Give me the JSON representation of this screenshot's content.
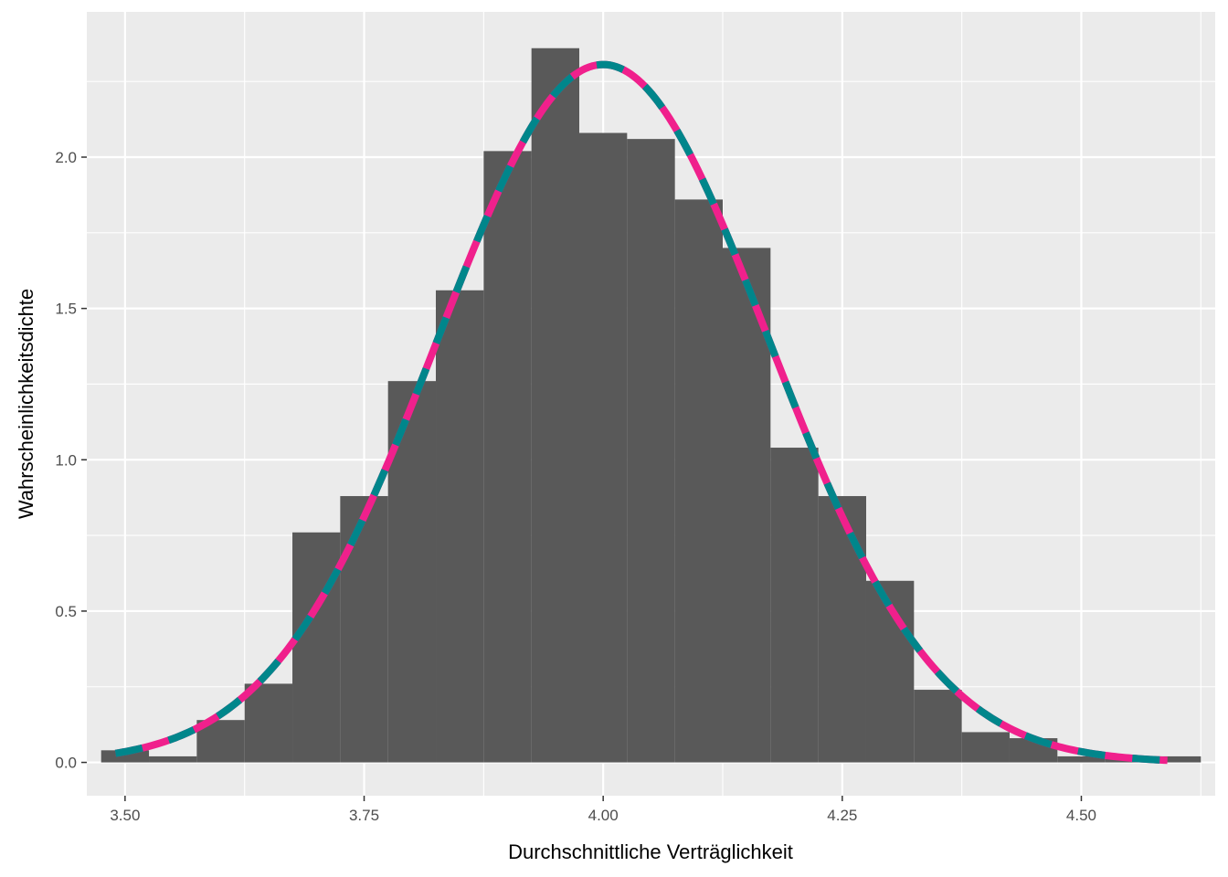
{
  "chart_data": {
    "type": "bar",
    "title": "",
    "xlabel": "Durchschnittliche Verträglichkeit",
    "ylabel": "Wahrscheinlichkeitsdichte",
    "xlim": [
      3.46,
      4.64
    ],
    "ylim": [
      -0.11,
      2.48
    ],
    "x_ticks": [
      3.5,
      3.75,
      4.0,
      4.25,
      4.5
    ],
    "x_tick_labels": [
      "3.50",
      "3.75",
      "4.00",
      "4.25",
      "4.50"
    ],
    "y_ticks": [
      0.0,
      0.5,
      1.0,
      1.5,
      2.0
    ],
    "y_tick_labels": [
      "0.0",
      "0.5",
      "1.0",
      "1.5",
      "2.0"
    ],
    "grid": true,
    "legend": "none",
    "colors": {
      "panel": "#ebebeb",
      "grid": "#ffffff",
      "bars": "#595959",
      "density_solid": "#f0208c",
      "density_dashed": "#00868b"
    },
    "histogram": {
      "bin_width": 0.05,
      "bins": [
        {
          "x0": 3.475,
          "x1": 3.525,
          "density": 0.04
        },
        {
          "x0": 3.525,
          "x1": 3.575,
          "density": 0.02
        },
        {
          "x0": 3.575,
          "x1": 3.625,
          "density": 0.14
        },
        {
          "x0": 3.625,
          "x1": 3.675,
          "density": 0.26
        },
        {
          "x0": 3.675,
          "x1": 3.725,
          "density": 0.76
        },
        {
          "x0": 3.725,
          "x1": 3.775,
          "density": 0.88
        },
        {
          "x0": 3.775,
          "x1": 3.825,
          "density": 1.26
        },
        {
          "x0": 3.825,
          "x1": 3.875,
          "density": 1.56
        },
        {
          "x0": 3.875,
          "x1": 3.925,
          "density": 2.02
        },
        {
          "x0": 3.925,
          "x1": 3.975,
          "density": 2.36
        },
        {
          "x0": 3.975,
          "x1": 4.025,
          "density": 2.08
        },
        {
          "x0": 4.025,
          "x1": 4.075,
          "density": 2.06
        },
        {
          "x0": 4.075,
          "x1": 4.125,
          "density": 1.86
        },
        {
          "x0": 4.125,
          "x1": 4.175,
          "density": 1.7
        },
        {
          "x0": 4.175,
          "x1": 4.225,
          "density": 1.04
        },
        {
          "x0": 4.225,
          "x1": 4.275,
          "density": 0.88
        },
        {
          "x0": 4.275,
          "x1": 4.325,
          "density": 0.6
        },
        {
          "x0": 4.325,
          "x1": 4.375,
          "density": 0.24
        },
        {
          "x0": 4.375,
          "x1": 4.425,
          "density": 0.1
        },
        {
          "x0": 4.425,
          "x1": 4.475,
          "density": 0.08
        },
        {
          "x0": 4.475,
          "x1": 4.525,
          "density": 0.02
        },
        {
          "x0": 4.525,
          "x1": 4.575,
          "density": 0.02
        },
        {
          "x0": 4.575,
          "x1": 4.625,
          "density": 0.02
        }
      ]
    },
    "density_curve": {
      "distribution": "normal",
      "mean": 4.0,
      "sd": 0.173,
      "x_range": [
        3.49,
        4.59
      ],
      "styles": [
        "solid",
        "dashed"
      ]
    }
  }
}
